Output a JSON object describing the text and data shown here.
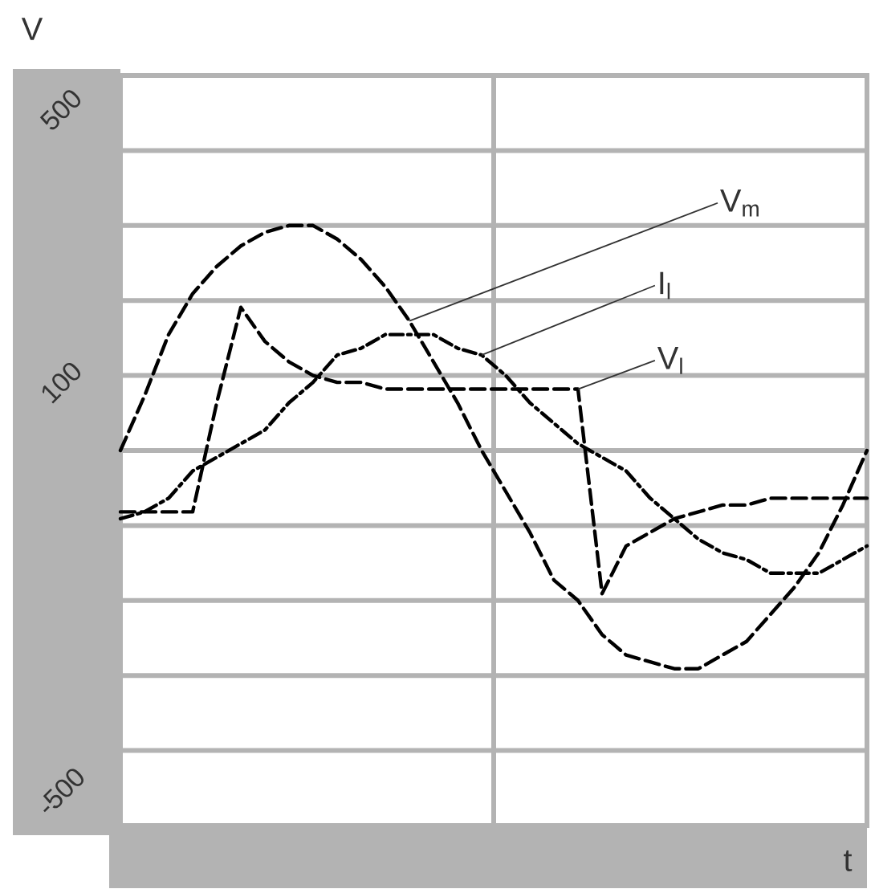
{
  "chart_data": {
    "type": "line",
    "xlabel": "t",
    "ylabel": "V",
    "categories": [
      null,
      null,
      null,
      null,
      null,
      null,
      null,
      null,
      null,
      null,
      null,
      null,
      null,
      null,
      null,
      null,
      null,
      null,
      null,
      null,
      null,
      null,
      null,
      null,
      null,
      null,
      null,
      null,
      null,
      null,
      null,
      null
    ],
    "series": [
      {
        "name": "V$_{m}$",
        "color": "#000000",
        "line_style": "dashed",
        "values": [
          0,
          80,
          170,
          230,
          270,
          300,
          320,
          330,
          330,
          310,
          280,
          240,
          190,
          130,
          70,
          0,
          -60,
          -120,
          -190,
          -220,
          -270,
          -300,
          -310,
          -320,
          -320,
          -300,
          -280,
          -240,
          -200,
          -150,
          -80,
          0
        ]
      },
      {
        "name": "I$_{l}$",
        "color": "#000000",
        "line_style": "dashdot",
        "values": [
          -100,
          -90,
          -70,
          -30,
          -10,
          10,
          30,
          70,
          100,
          140,
          150,
          170,
          170,
          170,
          150,
          140,
          110,
          70,
          40,
          10,
          -10,
          -30,
          -70,
          -100,
          -130,
          -150,
          -160,
          -180,
          -180,
          -180,
          -160,
          -140
        ]
      },
      {
        "name": "V$_{l}$",
        "color": "#000000",
        "line_style": "dashed",
        "values": [
          -90,
          -90,
          -90,
          -90,
          70,
          210,
          160,
          130,
          110,
          100,
          100,
          90,
          90,
          90,
          90,
          90,
          90,
          90,
          90,
          90,
          -210,
          -140,
          -120,
          -100,
          -90,
          -80,
          -80,
          -70,
          -70,
          -70,
          -70,
          -70
        ]
      }
    ],
    "ylim": [
      -550,
      550
    ],
    "yticks": [
      {
        "value": -550,
        "label": null
      },
      {
        "value": -440,
        "label": null
      },
      {
        "value": -330,
        "label": null
      },
      {
        "value": -220,
        "label": null
      },
      {
        "value": -110,
        "label": null
      },
      {
        "value": 0,
        "label": null
      },
      {
        "value": 110,
        "label": null
      },
      {
        "value": 220,
        "label": null
      },
      {
        "value": 330,
        "label": null
      },
      {
        "value": 440,
        "label": null
      },
      {
        "value": 550,
        "label": null
      },
      {
        "value": -500,
        "label": "-500"
      },
      {
        "value": 100,
        "label": "100"
      },
      {
        "value": 500,
        "label": "500"
      }
    ],
    "grid": true
  }
}
